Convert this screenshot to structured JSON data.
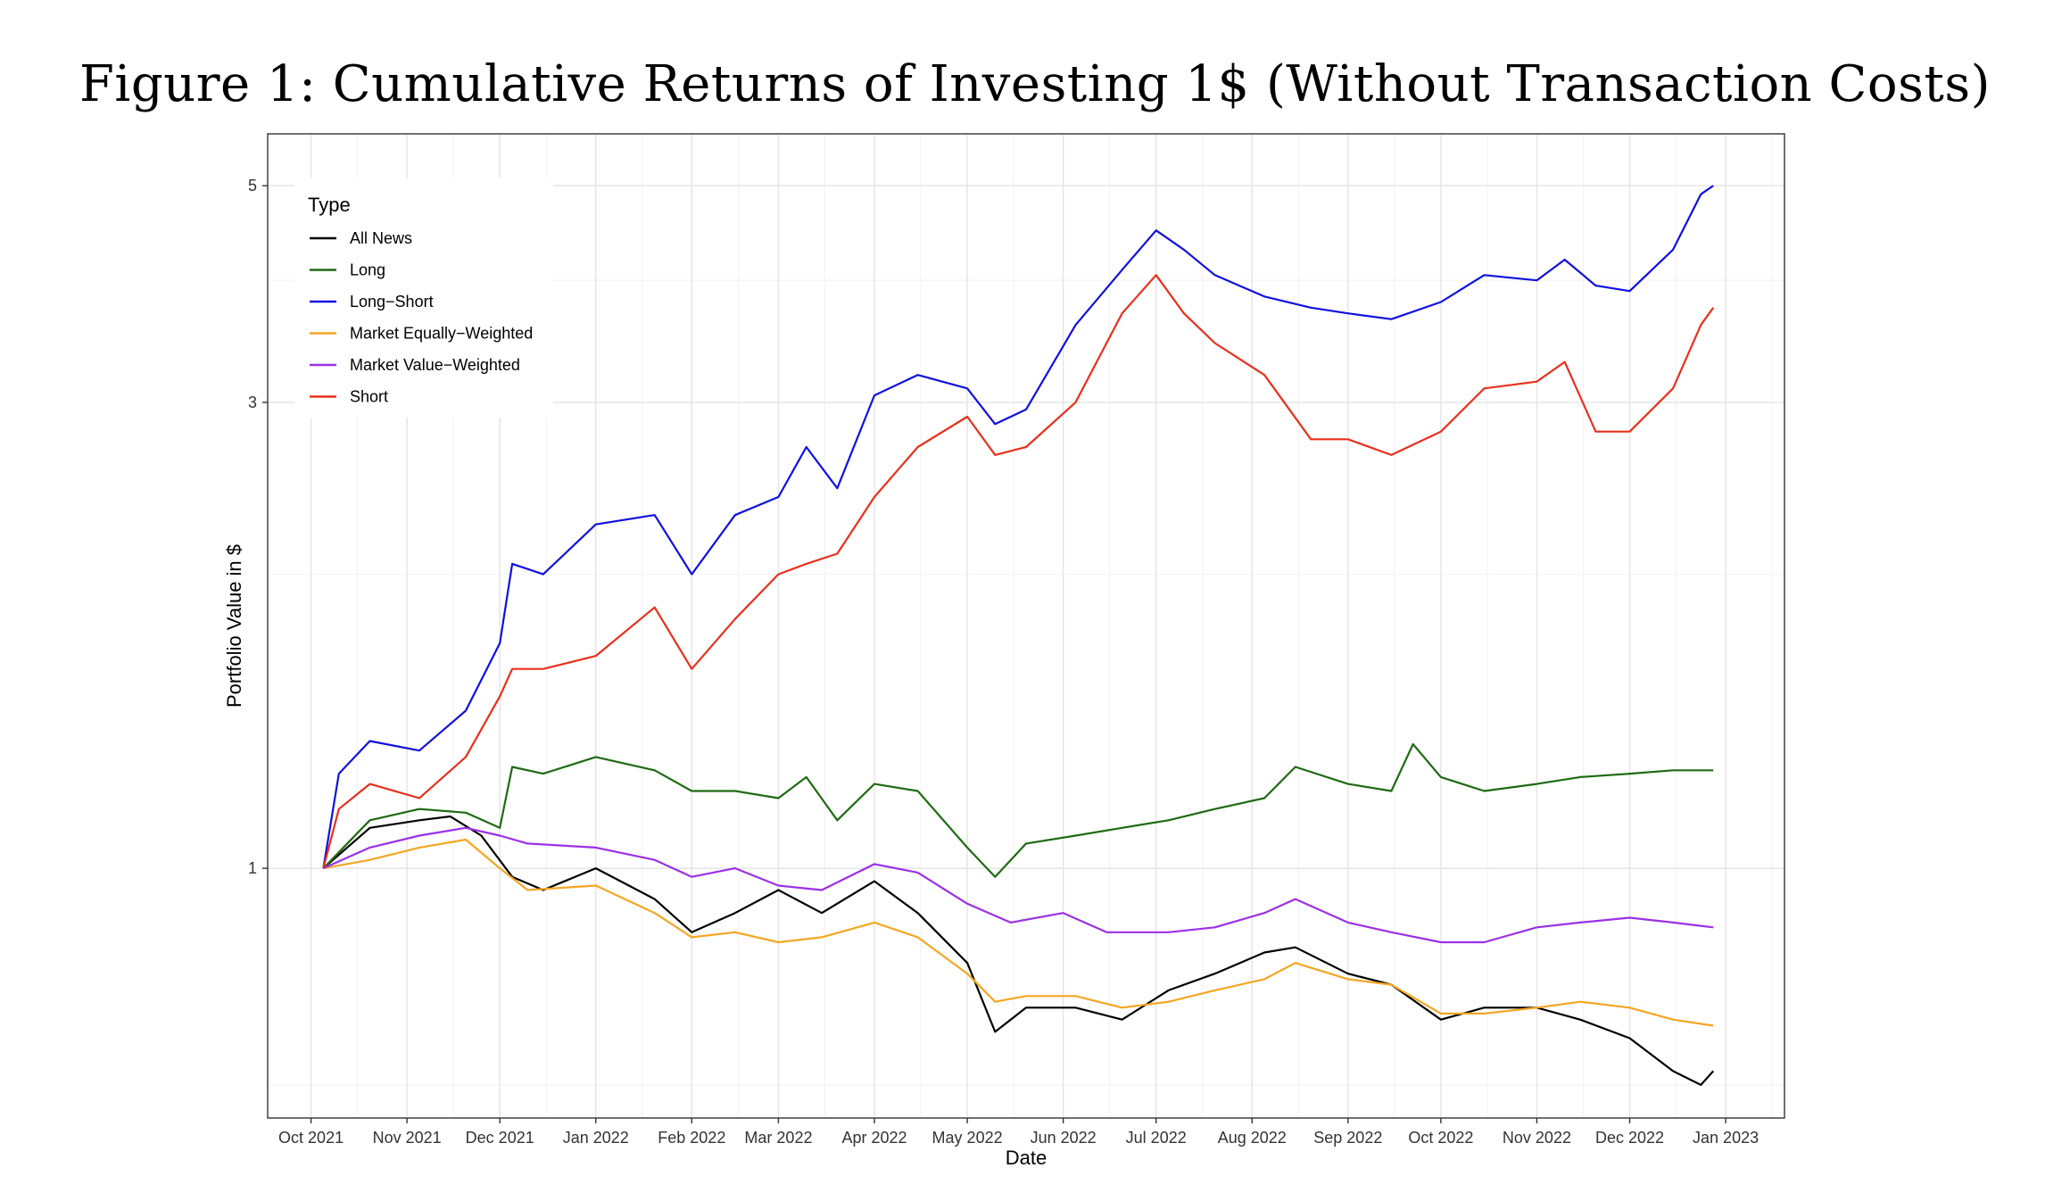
{
  "figure": {
    "title": "Figure 1: Cumulative Returns of Investing 1$ (Without Transaction Costs)"
  },
  "chart_data": {
    "type": "line",
    "title": "Figure 1: Cumulative Returns of Investing 1$ (Without Transaction Costs)",
    "xlabel": "Date",
    "ylabel": "Portfolio Value in $",
    "x_scale": "date",
    "y_scale": "log",
    "xlim": [
      "2021-09-17",
      "2023-01-20"
    ],
    "ylim": [
      0.555,
      5.65
    ],
    "y_ticks": [
      1,
      3,
      5
    ],
    "y_tick_labels": [
      "1",
      "3",
      "5"
    ],
    "x_ticks": [
      "2021-10-01",
      "2021-11-01",
      "2021-12-01",
      "2022-01-01",
      "2022-02-01",
      "2022-03-01",
      "2022-04-01",
      "2022-05-01",
      "2022-06-01",
      "2022-07-01",
      "2022-08-01",
      "2022-09-01",
      "2022-10-01",
      "2022-11-01",
      "2022-12-01",
      "2023-01-01"
    ],
    "x_tick_labels": [
      "Oct 2021",
      "Nov 2021",
      "Dec 2021",
      "Jan 2022",
      "Feb 2022",
      "Mar 2022",
      "Apr 2022",
      "May 2022",
      "Jun 2022",
      "Jul 2022",
      "Aug 2022",
      "Sep 2022",
      "Oct 2022",
      "Nov 2022",
      "Dec 2022",
      "Jan 2023"
    ],
    "grid": true,
    "legend": {
      "title": "Type",
      "position": "top-left"
    },
    "series": [
      {
        "name": "All News",
        "color": "#000000",
        "points": [
          [
            "2021-10-05",
            1.0
          ],
          [
            "2021-10-20",
            1.1
          ],
          [
            "2021-11-05",
            1.12
          ],
          [
            "2021-11-15",
            1.13
          ],
          [
            "2021-11-25",
            1.08
          ],
          [
            "2021-12-05",
            0.98
          ],
          [
            "2021-12-15",
            0.95
          ],
          [
            "2022-01-01",
            1.0
          ],
          [
            "2022-01-20",
            0.93
          ],
          [
            "2022-02-01",
            0.86
          ],
          [
            "2022-02-15",
            0.9
          ],
          [
            "2022-03-01",
            0.95
          ],
          [
            "2022-03-15",
            0.9
          ],
          [
            "2022-04-01",
            0.97
          ],
          [
            "2022-04-15",
            0.9
          ],
          [
            "2022-05-01",
            0.8
          ],
          [
            "2022-05-10",
            0.68
          ],
          [
            "2022-05-20",
            0.72
          ],
          [
            "2022-06-05",
            0.72
          ],
          [
            "2022-06-20",
            0.7
          ],
          [
            "2022-07-05",
            0.75
          ],
          [
            "2022-07-20",
            0.78
          ],
          [
            "2022-08-05",
            0.82
          ],
          [
            "2022-08-15",
            0.83
          ],
          [
            "2022-09-01",
            0.78
          ],
          [
            "2022-09-15",
            0.76
          ],
          [
            "2022-10-01",
            0.7
          ],
          [
            "2022-10-15",
            0.72
          ],
          [
            "2022-11-01",
            0.72
          ],
          [
            "2022-11-15",
            0.7
          ],
          [
            "2022-12-01",
            0.67
          ],
          [
            "2022-12-15",
            0.62
          ],
          [
            "2022-12-24",
            0.6
          ],
          [
            "2022-12-28",
            0.62
          ]
        ]
      },
      {
        "name": "Long",
        "color": "#1e6b12",
        "points": [
          [
            "2021-10-05",
            1.0
          ],
          [
            "2021-10-20",
            1.12
          ],
          [
            "2021-11-05",
            1.15
          ],
          [
            "2021-11-20",
            1.14
          ],
          [
            "2021-12-01",
            1.1
          ],
          [
            "2021-12-05",
            1.27
          ],
          [
            "2021-12-15",
            1.25
          ],
          [
            "2022-01-01",
            1.3
          ],
          [
            "2022-01-20",
            1.26
          ],
          [
            "2022-02-01",
            1.2
          ],
          [
            "2022-02-15",
            1.2
          ],
          [
            "2022-03-01",
            1.18
          ],
          [
            "2022-03-10",
            1.24
          ],
          [
            "2022-03-20",
            1.12
          ],
          [
            "2022-04-01",
            1.22
          ],
          [
            "2022-04-15",
            1.2
          ],
          [
            "2022-05-01",
            1.05
          ],
          [
            "2022-05-10",
            0.98
          ],
          [
            "2022-05-20",
            1.06
          ],
          [
            "2022-06-05",
            1.08
          ],
          [
            "2022-06-20",
            1.1
          ],
          [
            "2022-07-05",
            1.12
          ],
          [
            "2022-07-20",
            1.15
          ],
          [
            "2022-08-05",
            1.18
          ],
          [
            "2022-08-15",
            1.27
          ],
          [
            "2022-09-01",
            1.22
          ],
          [
            "2022-09-15",
            1.2
          ],
          [
            "2022-09-22",
            1.34
          ],
          [
            "2022-10-01",
            1.24
          ],
          [
            "2022-10-15",
            1.2
          ],
          [
            "2022-11-01",
            1.22
          ],
          [
            "2022-11-15",
            1.24
          ],
          [
            "2022-12-01",
            1.25
          ],
          [
            "2022-12-15",
            1.26
          ],
          [
            "2022-12-28",
            1.26
          ]
        ]
      },
      {
        "name": "Long−Short",
        "color": "#1010e0",
        "points": [
          [
            "2021-10-05",
            1.0
          ],
          [
            "2021-10-10",
            1.25
          ],
          [
            "2021-10-20",
            1.35
          ],
          [
            "2021-11-05",
            1.32
          ],
          [
            "2021-11-20",
            1.45
          ],
          [
            "2021-12-01",
            1.7
          ],
          [
            "2021-12-05",
            2.05
          ],
          [
            "2021-12-15",
            2.0
          ],
          [
            "2022-01-01",
            2.25
          ],
          [
            "2022-01-20",
            2.3
          ],
          [
            "2022-02-01",
            2.0
          ],
          [
            "2022-02-15",
            2.3
          ],
          [
            "2022-03-01",
            2.4
          ],
          [
            "2022-03-10",
            2.7
          ],
          [
            "2022-03-20",
            2.45
          ],
          [
            "2022-04-01",
            3.05
          ],
          [
            "2022-04-15",
            3.2
          ],
          [
            "2022-05-01",
            3.1
          ],
          [
            "2022-05-10",
            2.85
          ],
          [
            "2022-05-20",
            2.95
          ],
          [
            "2022-06-05",
            3.6
          ],
          [
            "2022-06-20",
            4.1
          ],
          [
            "2022-07-01",
            4.5
          ],
          [
            "2022-07-10",
            4.3
          ],
          [
            "2022-07-20",
            4.05
          ],
          [
            "2022-08-05",
            3.85
          ],
          [
            "2022-08-20",
            3.75
          ],
          [
            "2022-09-01",
            3.7
          ],
          [
            "2022-09-15",
            3.65
          ],
          [
            "2022-10-01",
            3.8
          ],
          [
            "2022-10-15",
            4.05
          ],
          [
            "2022-11-01",
            4.0
          ],
          [
            "2022-11-10",
            4.2
          ],
          [
            "2022-11-20",
            3.95
          ],
          [
            "2022-12-01",
            3.9
          ],
          [
            "2022-12-15",
            4.3
          ],
          [
            "2022-12-24",
            4.9
          ],
          [
            "2022-12-28",
            5.0
          ]
        ]
      },
      {
        "name": "Market Equally−Weighted",
        "color": "#f5a623",
        "points": [
          [
            "2021-10-05",
            1.0
          ],
          [
            "2021-10-20",
            1.02
          ],
          [
            "2021-11-05",
            1.05
          ],
          [
            "2021-11-20",
            1.07
          ],
          [
            "2021-12-01",
            1.0
          ],
          [
            "2021-12-10",
            0.95
          ],
          [
            "2022-01-01",
            0.96
          ],
          [
            "2022-01-20",
            0.9
          ],
          [
            "2022-02-01",
            0.85
          ],
          [
            "2022-02-15",
            0.86
          ],
          [
            "2022-03-01",
            0.84
          ],
          [
            "2022-03-15",
            0.85
          ],
          [
            "2022-04-01",
            0.88
          ],
          [
            "2022-04-15",
            0.85
          ],
          [
            "2022-05-01",
            0.78
          ],
          [
            "2022-05-10",
            0.73
          ],
          [
            "2022-05-20",
            0.74
          ],
          [
            "2022-06-05",
            0.74
          ],
          [
            "2022-06-20",
            0.72
          ],
          [
            "2022-07-05",
            0.73
          ],
          [
            "2022-07-20",
            0.75
          ],
          [
            "2022-08-05",
            0.77
          ],
          [
            "2022-08-15",
            0.8
          ],
          [
            "2022-09-01",
            0.77
          ],
          [
            "2022-09-15",
            0.76
          ],
          [
            "2022-10-01",
            0.71
          ],
          [
            "2022-10-15",
            0.71
          ],
          [
            "2022-11-01",
            0.72
          ],
          [
            "2022-11-15",
            0.73
          ],
          [
            "2022-12-01",
            0.72
          ],
          [
            "2022-12-15",
            0.7
          ],
          [
            "2022-12-28",
            0.69
          ]
        ]
      },
      {
        "name": "Market Value−Weighted",
        "color": "#9b30e6",
        "points": [
          [
            "2021-10-05",
            1.0
          ],
          [
            "2021-10-20",
            1.05
          ],
          [
            "2021-11-05",
            1.08
          ],
          [
            "2021-11-20",
            1.1
          ],
          [
            "2021-12-01",
            1.08
          ],
          [
            "2021-12-10",
            1.06
          ],
          [
            "2022-01-01",
            1.05
          ],
          [
            "2022-01-20",
            1.02
          ],
          [
            "2022-02-01",
            0.98
          ],
          [
            "2022-02-15",
            1.0
          ],
          [
            "2022-03-01",
            0.96
          ],
          [
            "2022-03-15",
            0.95
          ],
          [
            "2022-04-01",
            1.01
          ],
          [
            "2022-04-15",
            0.99
          ],
          [
            "2022-05-01",
            0.92
          ],
          [
            "2022-05-15",
            0.88
          ],
          [
            "2022-06-01",
            0.9
          ],
          [
            "2022-06-15",
            0.86
          ],
          [
            "2022-07-05",
            0.86
          ],
          [
            "2022-07-20",
            0.87
          ],
          [
            "2022-08-05",
            0.9
          ],
          [
            "2022-08-15",
            0.93
          ],
          [
            "2022-09-01",
            0.88
          ],
          [
            "2022-09-15",
            0.86
          ],
          [
            "2022-10-01",
            0.84
          ],
          [
            "2022-10-15",
            0.84
          ],
          [
            "2022-11-01",
            0.87
          ],
          [
            "2022-11-15",
            0.88
          ],
          [
            "2022-12-01",
            0.89
          ],
          [
            "2022-12-15",
            0.88
          ],
          [
            "2022-12-28",
            0.87
          ]
        ]
      },
      {
        "name": "Short",
        "color": "#e8301c",
        "points": [
          [
            "2021-10-05",
            1.0
          ],
          [
            "2021-10-10",
            1.15
          ],
          [
            "2021-10-20",
            1.22
          ],
          [
            "2021-11-05",
            1.18
          ],
          [
            "2021-11-20",
            1.3
          ],
          [
            "2021-12-01",
            1.5
          ],
          [
            "2021-12-05",
            1.6
          ],
          [
            "2021-12-15",
            1.6
          ],
          [
            "2022-01-01",
            1.65
          ],
          [
            "2022-01-20",
            1.85
          ],
          [
            "2022-02-01",
            1.6
          ],
          [
            "2022-02-15",
            1.8
          ],
          [
            "2022-03-01",
            2.0
          ],
          [
            "2022-03-10",
            2.05
          ],
          [
            "2022-03-20",
            2.1
          ],
          [
            "2022-04-01",
            2.4
          ],
          [
            "2022-04-15",
            2.7
          ],
          [
            "2022-05-01",
            2.9
          ],
          [
            "2022-05-10",
            2.65
          ],
          [
            "2022-05-20",
            2.7
          ],
          [
            "2022-06-05",
            3.0
          ],
          [
            "2022-06-20",
            3.7
          ],
          [
            "2022-07-01",
            4.05
          ],
          [
            "2022-07-10",
            3.7
          ],
          [
            "2022-07-20",
            3.45
          ],
          [
            "2022-08-05",
            3.2
          ],
          [
            "2022-08-20",
            2.75
          ],
          [
            "2022-09-01",
            2.75
          ],
          [
            "2022-09-15",
            2.65
          ],
          [
            "2022-10-01",
            2.8
          ],
          [
            "2022-10-15",
            3.1
          ],
          [
            "2022-11-01",
            3.15
          ],
          [
            "2022-11-10",
            3.3
          ],
          [
            "2022-11-20",
            2.8
          ],
          [
            "2022-12-01",
            2.8
          ],
          [
            "2022-12-15",
            3.1
          ],
          [
            "2022-12-24",
            3.6
          ],
          [
            "2022-12-28",
            3.75
          ]
        ]
      }
    ]
  }
}
